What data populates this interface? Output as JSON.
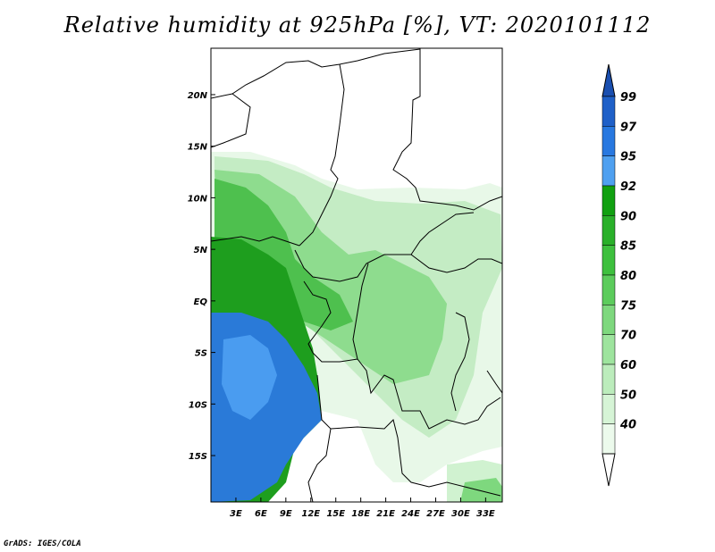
{
  "title": "Relative humidity at 925hPa [%], VT: 2020101112",
  "credit": "GrADS: IGES/COLA",
  "map": {
    "lon_range": [
      0,
      35
    ],
    "lat_range": [
      -19.5,
      24.5
    ],
    "lat_ticks": [
      {
        "value": 20,
        "label": "20N"
      },
      {
        "value": 15,
        "label": "15N"
      },
      {
        "value": 10,
        "label": "10N"
      },
      {
        "value": 5,
        "label": "5N"
      },
      {
        "value": 0,
        "label": "EQ"
      },
      {
        "value": -5,
        "label": "5S"
      },
      {
        "value": -10,
        "label": "10S"
      },
      {
        "value": -15,
        "label": "15S"
      }
    ],
    "lon_ticks": [
      {
        "value": 3,
        "label": "3E"
      },
      {
        "value": 6,
        "label": "6E"
      },
      {
        "value": 9,
        "label": "9E"
      },
      {
        "value": 12,
        "label": "12E"
      },
      {
        "value": 15,
        "label": "15E"
      },
      {
        "value": 18,
        "label": "18E"
      },
      {
        "value": 21,
        "label": "21E"
      },
      {
        "value": 24,
        "label": "24E"
      },
      {
        "value": 27,
        "label": "27E"
      },
      {
        "value": 30,
        "label": "30E"
      },
      {
        "value": 33,
        "label": "33E"
      }
    ]
  },
  "colorbar": {
    "levels": [
      "99",
      "97",
      "95",
      "92",
      "90",
      "85",
      "80",
      "75",
      "70",
      "60",
      "50",
      "40"
    ],
    "colors": [
      "#1f60c8",
      "#2878e0",
      "#4fa0f0",
      "#11a011",
      "#2ab02a",
      "#3ec03e",
      "#5ccc5c",
      "#7ed87e",
      "#9ee49e",
      "#bcecbc",
      "#d6f4d6",
      "#ecfaec"
    ],
    "top_color": "#1a4fb0"
  },
  "colors": {
    "ocean_deep": "#2874d8",
    "ocean_light": "#4a9cf0",
    "coast_green": "#1a9a1a",
    "land_mid": "#6fd06f",
    "land_light": "#c6eec6"
  }
}
